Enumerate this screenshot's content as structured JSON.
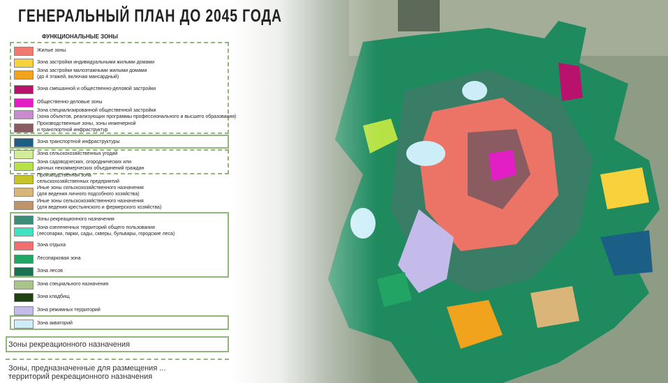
{
  "header": {
    "title": "ГЕНЕРАЛЬНЫЙ ПЛАН ДО 2045 ГОДА",
    "legend_title": "ФУНКЦИОНАЛЬНЫЕ ЗОНЫ"
  },
  "legend": [
    {
      "lines": [
        "Жилые зоны"
      ],
      "color": "#f07a6e"
    },
    {
      "lines": [
        "Зона застройки индивидуальными жилыми домами"
      ],
      "color": "#f7d23c"
    },
    {
      "lines": [
        "Зона застройки малоэтажными жилыми домами",
        "(до 4 этажей, включая мансардный)"
      ],
      "color": "#f2a31e"
    },
    {
      "lines": [
        "Зона смешанной и общественно-деловой застройки"
      ],
      "color": "#b8126c"
    },
    {
      "lines": [
        "Общественно-деловые зоны"
      ],
      "color": "#e21fc4"
    },
    {
      "lines": [
        "Зона специализированной общественной застройки",
        "(зона объектов, реализующих программы профессионального и высшего образования)"
      ],
      "color": "#c98ad0"
    },
    {
      "lines": [
        "Производственные зоны, зоны инженерной",
        "и транспортной инфраструктур"
      ],
      "color": "#8a5c62"
    },
    {
      "lines": [
        "Зона транспортной инфраструктуры"
      ],
      "color": "#1b5e86"
    },
    {
      "lines": [
        "Зона сельскохозяйственных угодий"
      ],
      "color": "#d3ec9a"
    },
    {
      "lines": [
        "Зона садоводческих, огороднических или",
        "дачных некоммерческих объединений граждан"
      ],
      "color": "#b6e245"
    },
    {
      "lines": [
        "Производственная зона",
        "сельскохозяйственных предприятий"
      ],
      "color": "#c7c42a"
    },
    {
      "lines": [
        "Иные зоны сельскохозяйственного назначения",
        "(для ведения личного подсобного хозяйства)"
      ],
      "color": "#d9b57a"
    },
    {
      "lines": [
        "Иные зоны сельскохозяйственного назначения",
        "(для ведения крестьянского и фермерского хозяйства)"
      ],
      "color": "#c0946a"
    },
    {
      "lines": [
        "Зоны рекреационного назначения"
      ],
      "color": "#3d8c7a"
    },
    {
      "lines": [
        "Зона озелененных территорий общего пользования",
        "(лесопарки, парки, сады, скверы, бульвары, городские леса)"
      ],
      "color": "#3fe3c2"
    },
    {
      "lines": [
        "Зона отдыха"
      ],
      "color": "#f26e6e"
    },
    {
      "lines": [
        "Лесопарковая зона"
      ],
      "color": "#22a464"
    },
    {
      "lines": [
        "Зона лесов"
      ],
      "color": "#1b7252"
    },
    {
      "lines": [
        "Зона специального назначения"
      ],
      "color": "#a7c588"
    },
    {
      "lines": [
        "Зона кладбищ"
      ],
      "color": "#1f4210"
    },
    {
      "lines": [
        "Зона режимных территорий"
      ],
      "color": "#c4bbea"
    },
    {
      "lines": [
        "Зона акваторий"
      ],
      "color": "#cdeef8"
    }
  ],
  "footer": {
    "box1": "Зоны рекреационного назначения",
    "box2": [
      "Зоны, предназначенные для размещения ...",
      "территорий рекреационного назначения"
    ]
  }
}
